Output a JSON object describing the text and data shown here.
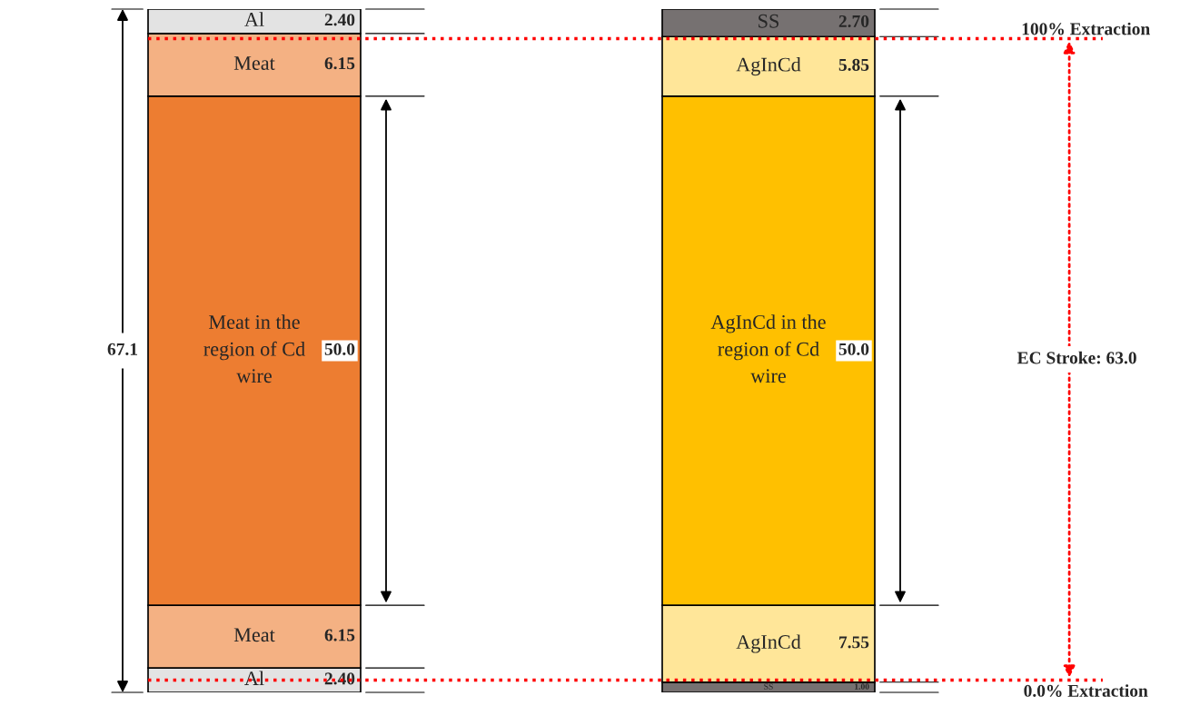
{
  "chart_data": {
    "type": "bar",
    "stacked": true,
    "categories": [
      null,
      null
    ],
    "tick_labels": false,
    "legend": false,
    "series": [
      {
        "name": "Al",
        "color": "#e3e3e3",
        "values": [
          2.4,
          null
        ],
        "value_labels": [
          "2.40",
          null
        ]
      },
      {
        "name": "Meat",
        "color": "#f4b183",
        "values": [
          6.15,
          null
        ],
        "value_labels": [
          "6.15",
          null
        ]
      },
      {
        "name": "Meat in the\nregion of Cd\nwire",
        "color": "#ed7d31",
        "values": [
          50.0,
          null
        ],
        "value_labels": [
          "50.0",
          null
        ]
      },
      {
        "name": "Meat",
        "color": "#f4b183",
        "values": [
          6.15,
          null
        ],
        "value_labels": [
          "6.15",
          null
        ]
      },
      {
        "name": "Al",
        "color": "#e3e3e3",
        "values": [
          2.4,
          null
        ],
        "value_labels": [
          "2.40",
          null
        ]
      },
      {
        "name": "SS",
        "color": "#767171",
        "values": [
          null,
          1.0
        ],
        "value_labels": [
          null,
          "1.00"
        ]
      },
      {
        "name": "AgInCd",
        "color": "#ffe699",
        "values": [
          null,
          7.55
        ],
        "value_labels": [
          null,
          "7.55"
        ]
      },
      {
        "name": "AgInCd in the\nregion of Cd\nwire",
        "color": "#ffc000",
        "values": [
          null,
          50.0
        ],
        "value_labels": [
          null,
          "50.0"
        ]
      },
      {
        "name": "AgInCd",
        "color": "#ffe699",
        "values": [
          null,
          5.85
        ],
        "value_labels": [
          null,
          "5.85"
        ]
      },
      {
        "name": "SS",
        "color": "#767171",
        "values": [
          null,
          2.7
        ],
        "value_labels": [
          null,
          "2.70"
        ]
      }
    ],
    "totals": [
      "67.1",
      null
    ],
    "ref_lines": [
      {
        "axis": "y",
        "value": 64.2,
        "label": "100% Extraction",
        "color": "#ff0000",
        "line_style": "dotted"
      },
      {
        "axis": "y",
        "value": 1.2,
        "label": "0.0% Extraction",
        "color": "#ff0000",
        "line_style": "dotted"
      }
    ],
    "annotations": [
      "EC Stroke: 63.0"
    ]
  }
}
